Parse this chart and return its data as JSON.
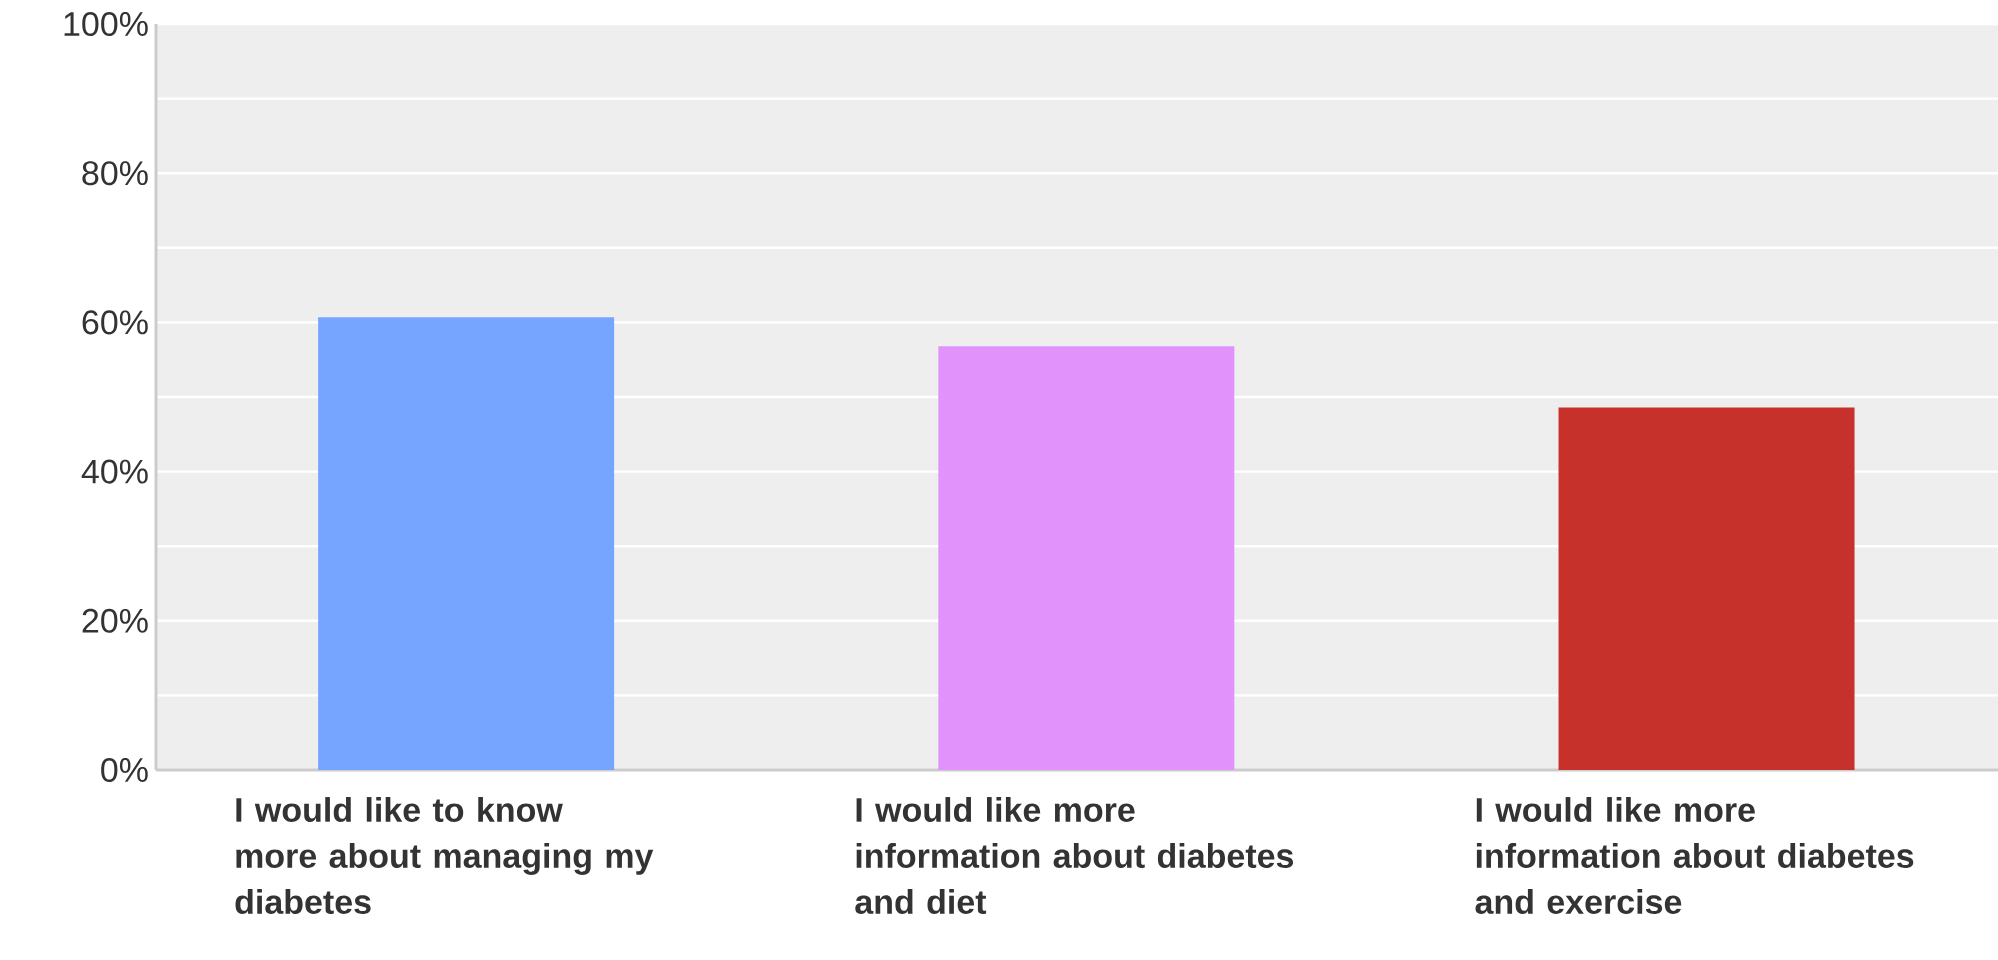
{
  "chart_data": {
    "type": "bar",
    "categories": [
      "I would like to know more about managing my diabetes",
      "I would like more information about diabetes and diet",
      "I would like more information about diabetes and exercise"
    ],
    "values": [
      60.7,
      56.8,
      48.6
    ],
    "colors": [
      "#76a5ff",
      "#e293fb",
      "#c6322b"
    ],
    "ylim": [
      0,
      100
    ],
    "yticks": [
      {
        "value": 0,
        "label": "0%"
      },
      {
        "value": 20,
        "label": "20%"
      },
      {
        "value": 40,
        "label": "40%"
      },
      {
        "value": 60,
        "label": "60%"
      },
      {
        "value": 80,
        "label": "80%"
      },
      {
        "value": 100,
        "label": "100%"
      }
    ],
    "grid": true
  }
}
